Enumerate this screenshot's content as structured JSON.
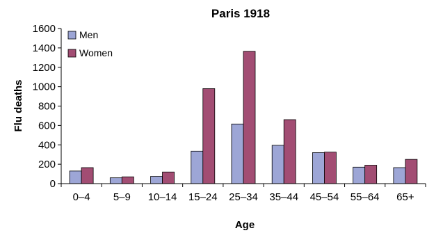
{
  "chart_data": {
    "type": "bar",
    "title": "Paris 1918",
    "xlabel": "Age",
    "ylabel": "Flu deaths",
    "categories": [
      "0–4",
      "5–9",
      "10–14",
      "15–24",
      "25–34",
      "35–44",
      "45–54",
      "55–64",
      "65+"
    ],
    "series": [
      {
        "name": "Men",
        "color": "#9da6d6",
        "values": [
          130,
          60,
          75,
          335,
          615,
          395,
          320,
          170,
          165
        ]
      },
      {
        "name": "Women",
        "color": "#a24d73",
        "values": [
          165,
          70,
          120,
          980,
          1365,
          660,
          325,
          190,
          250
        ]
      }
    ],
    "ylim": [
      0,
      1600
    ],
    "yticks": [
      0,
      200,
      400,
      600,
      800,
      1000,
      1200,
      1400,
      1600
    ],
    "grid": false,
    "legend_position": "top-left"
  }
}
